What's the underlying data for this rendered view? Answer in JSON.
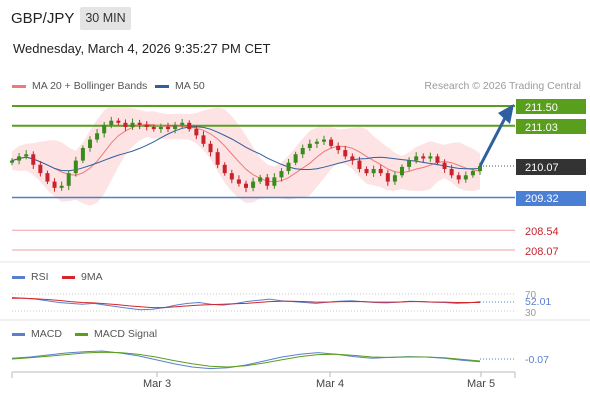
{
  "header": {
    "symbol": "GBP/JPY",
    "timeframe": "30 MIN",
    "datetime": "Wednesday, March 4, 2026 9:35:27 PM CET"
  },
  "legend": {
    "ma20": "MA 20 + Bollinger Bands",
    "ma50": "MA 50",
    "research": "Research © 2026 Trading Central"
  },
  "colors": {
    "ma20": "#f07878",
    "ma50": "#2f5f9e",
    "band": "#fde3e3",
    "resistance": "#5a9e1e",
    "support": "#4a7fd4",
    "pivot_low": "#f0a0a0",
    "up_candle": "#3a8a1e",
    "down_candle": "#c8232c",
    "arrow": "#2e5f9e",
    "rsi": "#5b7fcf",
    "rsi_ma": "#d6262d",
    "macd": "#5b7fcf",
    "macd_signal": "#5a9e1e"
  },
  "chart_data": [
    {
      "type": "candlestick",
      "title": "GBP/JPY",
      "x_ticks": [
        "Mar 3",
        "Mar 4",
        "Mar 5"
      ],
      "ylim": [
        208.0,
        211.8
      ],
      "last_price": 210.07,
      "levels": [
        {
          "value": 211.5,
          "label": "211.50",
          "kind": "resistance"
        },
        {
          "value": 211.03,
          "label": "211.03",
          "kind": "resistance"
        },
        {
          "value": 209.32,
          "label": "209.32",
          "kind": "support"
        },
        {
          "value": 208.54,
          "label": "208.54",
          "kind": "level"
        },
        {
          "value": 208.07,
          "label": "208.07",
          "kind": "level"
        }
      ],
      "target_arrow": {
        "from": 210.07,
        "to": 211.5
      },
      "closes": [
        210.2,
        210.3,
        210.35,
        210.1,
        209.9,
        209.7,
        209.55,
        209.6,
        209.9,
        210.2,
        210.5,
        210.7,
        210.85,
        211.05,
        211.15,
        211.1,
        211.0,
        211.1,
        211.05,
        211.0,
        210.95,
        211.0,
        210.95,
        211.05,
        211.1,
        210.95,
        210.8,
        210.6,
        210.4,
        210.1,
        209.9,
        209.75,
        209.65,
        209.55,
        209.7,
        209.8,
        209.6,
        209.8,
        209.95,
        210.15,
        210.35,
        210.5,
        210.6,
        210.65,
        210.7,
        210.55,
        210.45,
        210.3,
        210.2,
        210.0,
        209.9,
        210.0,
        209.9,
        209.7,
        209.85,
        210.05,
        210.2,
        210.3,
        210.25,
        210.3,
        210.15,
        210.0,
        209.85,
        209.75,
        209.85,
        209.95,
        210.07
      ]
    },
    {
      "type": "line",
      "title": "RSI",
      "series": [
        {
          "name": "RSI",
          "values": [
            62,
            60,
            58,
            54,
            50,
            48,
            46,
            48,
            44,
            40,
            36,
            33,
            34,
            38,
            44,
            48,
            50,
            46,
            44,
            47,
            52,
            55,
            58,
            54,
            52,
            50,
            48,
            51,
            53,
            54,
            52,
            50,
            49,
            51,
            53,
            52,
            51,
            50,
            48,
            49,
            52.01
          ]
        },
        {
          "name": "9MA",
          "values": [
            60,
            60,
            59,
            57,
            55,
            52,
            50,
            49,
            47,
            45,
            42,
            40,
            38,
            38,
            40,
            42,
            44,
            45,
            46,
            47,
            48,
            50,
            52,
            53,
            53,
            52,
            51,
            51,
            52,
            52,
            52,
            51,
            51,
            51,
            52,
            52,
            51,
            51,
            50,
            50,
            50
          ]
        }
      ],
      "levels": [
        70,
        30
      ],
      "last_value": 52.01,
      "ylim": [
        0,
        100
      ]
    },
    {
      "type": "line",
      "title": "MACD",
      "series": [
        {
          "name": "MACD",
          "values": [
            0.02,
            0.05,
            0.1,
            0.15,
            0.18,
            0.2,
            0.15,
            0.08,
            -0.02,
            -0.12,
            -0.2,
            -0.24,
            -0.22,
            -0.15,
            -0.05,
            0.05,
            0.12,
            0.16,
            0.12,
            0.06,
            0.02,
            0.04,
            0.06,
            0.05,
            0.02,
            -0.03,
            -0.07
          ]
        },
        {
          "name": "MACD Signal",
          "values": [
            0.0,
            0.03,
            0.07,
            0.11,
            0.15,
            0.17,
            0.16,
            0.12,
            0.05,
            -0.04,
            -0.12,
            -0.18,
            -0.2,
            -0.17,
            -0.1,
            -0.02,
            0.06,
            0.11,
            0.12,
            0.09,
            0.05,
            0.04,
            0.05,
            0.05,
            0.03,
            -0.01,
            -0.05
          ]
        }
      ],
      "last_value": -0.07,
      "ylim": [
        -0.3,
        0.3
      ]
    }
  ],
  "rsi_panel": {
    "label": "RSI",
    "ma_label": "9MA",
    "level_70": "70",
    "level_30": "30",
    "value_label": "52.01"
  },
  "macd_panel": {
    "label": "MACD",
    "signal_label": "MACD Signal",
    "value_label": "-0.07"
  },
  "price_labels": {
    "last": "210.07",
    "r2": "211.50",
    "r1": "211.03",
    "s1": "209.32",
    "l1": "208.54",
    "l2": "208.07"
  }
}
